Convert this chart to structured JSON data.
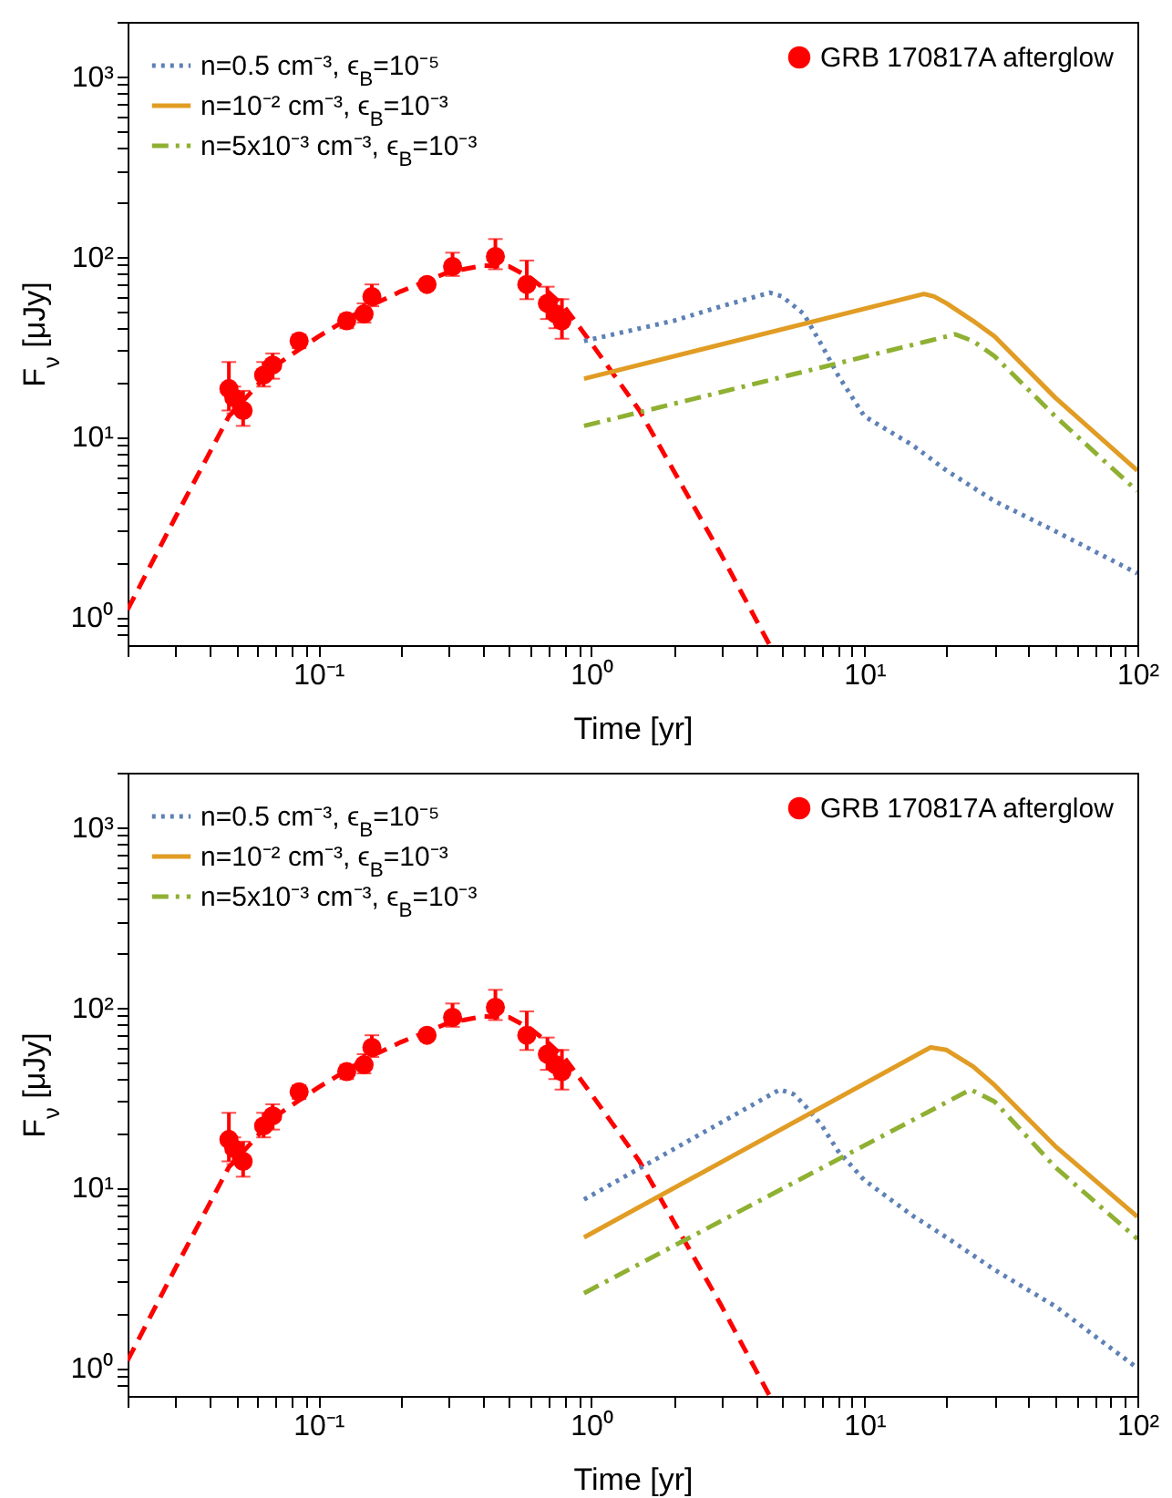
{
  "chart_data": [
    {
      "type": "line",
      "xlabel": "Time [yr]",
      "ylabel": "F$_{ν}$ [μJy]",
      "log": "xy",
      "legend": "top",
      "grid": false,
      "xlim": [
        0.02,
        100
      ],
      "ylim": [
        0.7,
        2000
      ],
      "xticks": [
        {
          "value": 0.02,
          "label": null
        },
        {
          "value": 0.03,
          "label": null
        },
        {
          "value": 0.04,
          "label": null
        },
        {
          "value": 0.05,
          "label": null
        },
        {
          "value": 0.06,
          "label": null
        },
        {
          "value": 0.07,
          "label": null
        },
        {
          "value": 0.08,
          "label": null
        },
        {
          "value": 0.09,
          "label": null
        },
        {
          "value": 0.1,
          "label": "10⁻¹"
        },
        {
          "value": 0.2,
          "label": null
        },
        {
          "value": 0.3,
          "label": null
        },
        {
          "value": 0.4,
          "label": null
        },
        {
          "value": 0.5,
          "label": null
        },
        {
          "value": 0.6,
          "label": null
        },
        {
          "value": 0.7,
          "label": null
        },
        {
          "value": 0.8,
          "label": null
        },
        {
          "value": 0.9,
          "label": null
        },
        {
          "value": 1,
          "label": "10⁰"
        },
        {
          "value": 2,
          "label": null
        },
        {
          "value": 3,
          "label": null
        },
        {
          "value": 4,
          "label": null
        },
        {
          "value": 5,
          "label": null
        },
        {
          "value": 6,
          "label": null
        },
        {
          "value": 7,
          "label": null
        },
        {
          "value": 8,
          "label": null
        },
        {
          "value": 9,
          "label": null
        },
        {
          "value": 10,
          "label": "10¹"
        },
        {
          "value": 20,
          "label": null
        },
        {
          "value": 30,
          "label": null
        },
        {
          "value": 40,
          "label": null
        },
        {
          "value": 50,
          "label": null
        },
        {
          "value": 60,
          "label": null
        },
        {
          "value": 70,
          "label": null
        },
        {
          "value": 80,
          "label": null
        },
        {
          "value": 90,
          "label": null
        },
        {
          "value": 100,
          "label": "10²"
        }
      ],
      "yticks": [
        {
          "value": 0.8,
          "label": null
        },
        {
          "value": 0.9,
          "label": null
        },
        {
          "value": 1,
          "label": "10⁰"
        },
        {
          "value": 2,
          "label": null
        },
        {
          "value": 3,
          "label": null
        },
        {
          "value": 4,
          "label": null
        },
        {
          "value": 5,
          "label": null
        },
        {
          "value": 6,
          "label": null
        },
        {
          "value": 7,
          "label": null
        },
        {
          "value": 8,
          "label": null
        },
        {
          "value": 9,
          "label": null
        },
        {
          "value": 10,
          "label": "10¹"
        },
        {
          "value": 20,
          "label": null
        },
        {
          "value": 30,
          "label": null
        },
        {
          "value": 40,
          "label": null
        },
        {
          "value": 50,
          "label": null
        },
        {
          "value": 60,
          "label": null
        },
        {
          "value": 70,
          "label": null
        },
        {
          "value": 80,
          "label": null
        },
        {
          "value": 90,
          "label": null
        },
        {
          "value": 100,
          "label": "10²"
        },
        {
          "value": 200,
          "label": null
        },
        {
          "value": 300,
          "label": null
        },
        {
          "value": 400,
          "label": null
        },
        {
          "value": 500,
          "label": null
        },
        {
          "value": 600,
          "label": null
        },
        {
          "value": 700,
          "label": null
        },
        {
          "value": 800,
          "label": null
        },
        {
          "value": 900,
          "label": null
        },
        {
          "value": 1000,
          "label": "10³"
        },
        {
          "value": 2000,
          "label": null
        }
      ],
      "series": [
        {
          "type": "line",
          "color": "#ff0000",
          "line_style": "dashed",
          "marker": "none",
          "x": [
            0.02,
            0.03,
            0.047,
            0.07,
            0.1,
            0.15,
            0.2,
            0.3,
            0.4,
            0.5,
            0.6,
            0.7,
            0.8,
            0.9,
            1,
            1.5,
            2,
            3,
            4.5
          ],
          "values": [
            1.1,
            3.6,
            13,
            25,
            36,
            52,
            64,
            82,
            89,
            88,
            76,
            63,
            52,
            41,
            33,
            14,
            6.5,
            2.2,
            0.7
          ]
        },
        {
          "type": "scatter",
          "name": "GRB 170817A afterglow",
          "color": "#ff0000",
          "marker": "circle",
          "x": [
            0.047,
            0.049,
            0.053,
            0.063,
            0.068,
            0.085,
            0.127,
            0.147,
            0.157,
            0.25,
            0.31,
            0.445,
            0.58,
            0.69,
            0.74,
            0.78
          ],
          "values": [
            18.5,
            16.5,
            14,
            22,
            25,
            34,
            44,
            48,
            60,
            70,
            88,
            100,
            70,
            55,
            48,
            44
          ],
          "errors": [
            [
              14,
              26
            ],
            [
              13.5,
              19
            ],
            [
              11.5,
              18
            ],
            [
              19,
              26
            ],
            [
              21,
              29
            ],
            [
              31,
              37
            ],
            [
              40,
              48
            ],
            [
              43,
              55
            ],
            [
              53,
              70
            ],
            [
              66,
              75
            ],
            [
              78,
              105
            ],
            [
              85,
              125
            ],
            [
              58,
              95
            ],
            [
              45,
              68
            ],
            [
              40,
              58
            ],
            [
              35,
              58
            ]
          ]
        },
        {
          "type": "line",
          "name": "n=0.5 cm⁻³, ϵ$_{B}$=10⁻⁵",
          "color": "#5e81b5",
          "line_style": "dotted",
          "marker": "none",
          "x": [
            0.94,
            2,
            3,
            4.5,
            5,
            6,
            7,
            8,
            10,
            15,
            20,
            30,
            50,
            100
          ],
          "values": [
            34,
            44,
            53,
            63,
            60,
            48,
            32,
            22,
            13,
            9,
            6.5,
            4.4,
            3.0,
            1.75
          ]
        },
        {
          "type": "line",
          "name": "n=10⁻² cm⁻³, ϵ$_{B}$=10⁻³",
          "color": "#e19c24",
          "line_style": "solid",
          "marker": "none",
          "x": [
            0.94,
            16.5,
            18,
            20,
            25,
            30,
            50,
            100
          ],
          "values": [
            21,
            62,
            60,
            55,
            44,
            36,
            16.5,
            6.5
          ]
        },
        {
          "type": "line",
          "name": "n=5x10⁻³ cm⁻³, ϵ$_{B}$=10⁻³",
          "color": "#8fb032",
          "line_style": "dashdot",
          "marker": "none",
          "x": [
            0.94,
            21.5,
            25,
            30,
            50,
            100
          ],
          "values": [
            11.5,
            37,
            34,
            28,
            13,
            5
          ]
        }
      ]
    },
    {
      "type": "line",
      "xlabel": "Time [yr]",
      "ylabel": "F$_{ν}$ [μJy]",
      "log": "xy",
      "legend": "top",
      "grid": false,
      "xlim": [
        0.02,
        100
      ],
      "ylim": [
        0.7,
        2000
      ],
      "xticks": [
        {
          "value": 0.02,
          "label": null
        },
        {
          "value": 0.03,
          "label": null
        },
        {
          "value": 0.04,
          "label": null
        },
        {
          "value": 0.05,
          "label": null
        },
        {
          "value": 0.06,
          "label": null
        },
        {
          "value": 0.07,
          "label": null
        },
        {
          "value": 0.08,
          "label": null
        },
        {
          "value": 0.09,
          "label": null
        },
        {
          "value": 0.1,
          "label": "10⁻¹"
        },
        {
          "value": 0.2,
          "label": null
        },
        {
          "value": 0.3,
          "label": null
        },
        {
          "value": 0.4,
          "label": null
        },
        {
          "value": 0.5,
          "label": null
        },
        {
          "value": 0.6,
          "label": null
        },
        {
          "value": 0.7,
          "label": null
        },
        {
          "value": 0.8,
          "label": null
        },
        {
          "value": 0.9,
          "label": null
        },
        {
          "value": 1,
          "label": "10⁰"
        },
        {
          "value": 2,
          "label": null
        },
        {
          "value": 3,
          "label": null
        },
        {
          "value": 4,
          "label": null
        },
        {
          "value": 5,
          "label": null
        },
        {
          "value": 6,
          "label": null
        },
        {
          "value": 7,
          "label": null
        },
        {
          "value": 8,
          "label": null
        },
        {
          "value": 9,
          "label": null
        },
        {
          "value": 10,
          "label": "10¹"
        },
        {
          "value": 20,
          "label": null
        },
        {
          "value": 30,
          "label": null
        },
        {
          "value": 40,
          "label": null
        },
        {
          "value": 50,
          "label": null
        },
        {
          "value": 60,
          "label": null
        },
        {
          "value": 70,
          "label": null
        },
        {
          "value": 80,
          "label": null
        },
        {
          "value": 90,
          "label": null
        },
        {
          "value": 100,
          "label": "10²"
        }
      ],
      "yticks": [
        {
          "value": 0.8,
          "label": null
        },
        {
          "value": 0.9,
          "label": null
        },
        {
          "value": 1,
          "label": "10⁰"
        },
        {
          "value": 2,
          "label": null
        },
        {
          "value": 3,
          "label": null
        },
        {
          "value": 4,
          "label": null
        },
        {
          "value": 5,
          "label": null
        },
        {
          "value": 6,
          "label": null
        },
        {
          "value": 7,
          "label": null
        },
        {
          "value": 8,
          "label": null
        },
        {
          "value": 9,
          "label": null
        },
        {
          "value": 10,
          "label": "10¹"
        },
        {
          "value": 20,
          "label": null
        },
        {
          "value": 30,
          "label": null
        },
        {
          "value": 40,
          "label": null
        },
        {
          "value": 50,
          "label": null
        },
        {
          "value": 60,
          "label": null
        },
        {
          "value": 70,
          "label": null
        },
        {
          "value": 80,
          "label": null
        },
        {
          "value": 90,
          "label": null
        },
        {
          "value": 100,
          "label": "10²"
        },
        {
          "value": 200,
          "label": null
        },
        {
          "value": 300,
          "label": null
        },
        {
          "value": 400,
          "label": null
        },
        {
          "value": 500,
          "label": null
        },
        {
          "value": 600,
          "label": null
        },
        {
          "value": 700,
          "label": null
        },
        {
          "value": 800,
          "label": null
        },
        {
          "value": 900,
          "label": null
        },
        {
          "value": 1000,
          "label": "10³"
        },
        {
          "value": 2000,
          "label": null
        }
      ],
      "series": [
        {
          "type": "line",
          "color": "#ff0000",
          "line_style": "dashed",
          "marker": "none",
          "x": [
            0.02,
            0.03,
            0.047,
            0.07,
            0.1,
            0.15,
            0.2,
            0.3,
            0.4,
            0.5,
            0.6,
            0.7,
            0.8,
            0.9,
            1,
            1.5,
            2,
            3,
            4.5
          ],
          "values": [
            1.1,
            3.6,
            13,
            25,
            36,
            52,
            64,
            82,
            89,
            88,
            76,
            63,
            52,
            41,
            33,
            14,
            6.5,
            2.2,
            0.7
          ]
        },
        {
          "type": "scatter",
          "name": "GRB 170817A afterglow",
          "color": "#ff0000",
          "marker": "circle",
          "x": [
            0.047,
            0.049,
            0.053,
            0.063,
            0.068,
            0.085,
            0.127,
            0.147,
            0.157,
            0.25,
            0.31,
            0.445,
            0.58,
            0.69,
            0.74,
            0.78
          ],
          "values": [
            18.5,
            16.5,
            14,
            22,
            25,
            34,
            44,
            48,
            60,
            70,
            88,
            100,
            70,
            55,
            48,
            44
          ],
          "errors": [
            [
              14,
              26
            ],
            [
              13.5,
              19
            ],
            [
              11.5,
              18
            ],
            [
              19,
              26
            ],
            [
              21,
              29
            ],
            [
              31,
              37
            ],
            [
              40,
              48
            ],
            [
              43,
              55
            ],
            [
              53,
              70
            ],
            [
              66,
              75
            ],
            [
              78,
              105
            ],
            [
              85,
              125
            ],
            [
              58,
              95
            ],
            [
              45,
              68
            ],
            [
              40,
              58
            ],
            [
              35,
              58
            ]
          ]
        },
        {
          "type": "line",
          "name": "n=0.5 cm⁻³, ϵ$_{B}$=10⁻⁵",
          "color": "#5e81b5",
          "line_style": "dotted",
          "marker": "none",
          "x": [
            0.94,
            4.9,
            5.5,
            6,
            7,
            8,
            10,
            15,
            20,
            30,
            50,
            100
          ],
          "values": [
            8.6,
            35,
            33,
            29,
            22,
            16,
            11,
            7,
            5.3,
            3.5,
            2.2,
            1.0
          ]
        },
        {
          "type": "line",
          "name": "n=10⁻² cm⁻³, ϵ$_{B}$=10⁻³",
          "color": "#e19c24",
          "line_style": "solid",
          "marker": "none",
          "x": [
            0.94,
            17.5,
            20,
            25,
            30,
            50,
            100
          ],
          "values": [
            5.3,
            60,
            58,
            47,
            37,
            17,
            6.9
          ]
        },
        {
          "type": "line",
          "name": "n=5x10⁻³ cm⁻³, ϵ$_{B}$=10⁻³",
          "color": "#8fb032",
          "line_style": "dashdot",
          "marker": "none",
          "x": [
            0.94,
            24.5,
            30,
            50,
            100
          ],
          "values": [
            2.6,
            35,
            30,
            13,
            5.2
          ]
        }
      ]
    }
  ]
}
